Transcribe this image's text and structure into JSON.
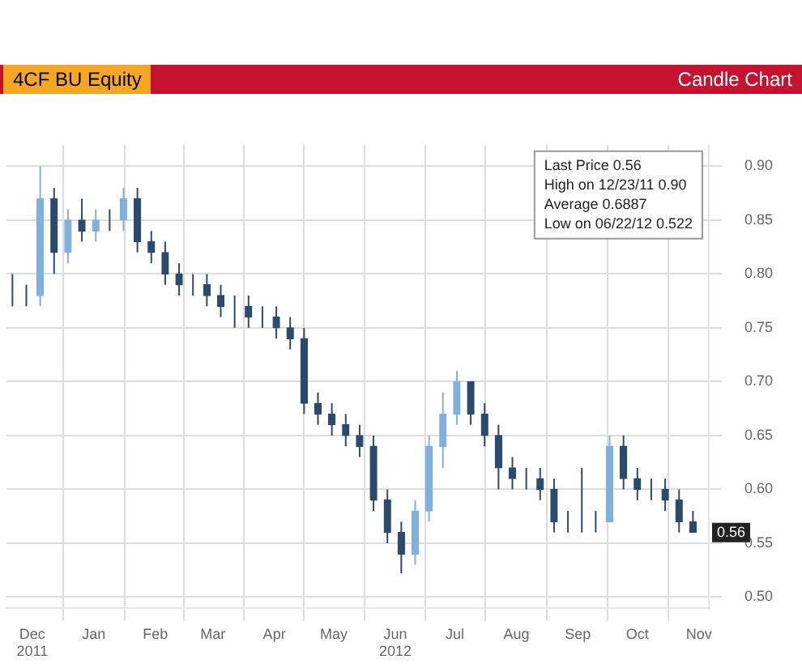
{
  "chart_data": {
    "type": "candlestick",
    "title": "Candle Chart",
    "subtitle": "4CF BU Equity",
    "x": [
      "2011-12-05",
      "2011-12-12",
      "2011-12-19",
      "2011-12-26",
      "2012-01-02",
      "2012-01-09",
      "2012-01-16",
      "2012-01-23",
      "2012-01-30",
      "2012-02-06",
      "2012-02-13",
      "2012-02-20",
      "2012-02-27",
      "2012-03-05",
      "2012-03-12",
      "2012-03-19",
      "2012-03-26",
      "2012-04-02",
      "2012-04-09",
      "2012-04-16",
      "2012-04-23",
      "2012-04-30",
      "2012-05-07",
      "2012-05-14",
      "2012-05-21",
      "2012-05-28",
      "2012-06-04",
      "2012-06-11",
      "2012-06-18",
      "2012-06-25",
      "2012-07-02",
      "2012-07-09",
      "2012-07-16",
      "2012-07-23",
      "2012-07-30",
      "2012-08-06",
      "2012-08-13",
      "2012-08-20",
      "2012-08-27",
      "2012-09-03",
      "2012-09-10",
      "2012-09-17",
      "2012-09-24",
      "2012-10-01",
      "2012-10-08",
      "2012-10-15",
      "2012-10-22",
      "2012-10-29",
      "2012-11-05",
      "2012-11-12"
    ],
    "ohlc": [
      [
        0.78,
        0.8,
        0.77,
        0.78
      ],
      [
        0.78,
        0.79,
        0.77,
        0.78
      ],
      [
        0.78,
        0.9,
        0.77,
        0.87
      ],
      [
        0.87,
        0.88,
        0.8,
        0.82
      ],
      [
        0.82,
        0.86,
        0.81,
        0.85
      ],
      [
        0.85,
        0.87,
        0.83,
        0.84
      ],
      [
        0.84,
        0.86,
        0.83,
        0.85
      ],
      [
        0.85,
        0.86,
        0.84,
        0.85
      ],
      [
        0.85,
        0.88,
        0.84,
        0.87
      ],
      [
        0.87,
        0.88,
        0.82,
        0.83
      ],
      [
        0.83,
        0.84,
        0.81,
        0.82
      ],
      [
        0.82,
        0.83,
        0.79,
        0.8
      ],
      [
        0.8,
        0.81,
        0.78,
        0.79
      ],
      [
        0.79,
        0.8,
        0.78,
        0.79
      ],
      [
        0.79,
        0.8,
        0.77,
        0.78
      ],
      [
        0.78,
        0.79,
        0.76,
        0.77
      ],
      [
        0.77,
        0.78,
        0.75,
        0.77
      ],
      [
        0.77,
        0.78,
        0.75,
        0.76
      ],
      [
        0.76,
        0.77,
        0.75,
        0.76
      ],
      [
        0.76,
        0.77,
        0.74,
        0.75
      ],
      [
        0.75,
        0.76,
        0.73,
        0.74
      ],
      [
        0.74,
        0.75,
        0.67,
        0.68
      ],
      [
        0.68,
        0.69,
        0.66,
        0.67
      ],
      [
        0.67,
        0.68,
        0.65,
        0.66
      ],
      [
        0.66,
        0.67,
        0.64,
        0.65
      ],
      [
        0.65,
        0.66,
        0.63,
        0.64
      ],
      [
        0.64,
        0.65,
        0.58,
        0.59
      ],
      [
        0.59,
        0.6,
        0.55,
        0.56
      ],
      [
        0.56,
        0.57,
        0.522,
        0.54
      ],
      [
        0.54,
        0.59,
        0.53,
        0.58
      ],
      [
        0.58,
        0.65,
        0.57,
        0.64
      ],
      [
        0.64,
        0.69,
        0.62,
        0.67
      ],
      [
        0.67,
        0.71,
        0.66,
        0.7
      ],
      [
        0.7,
        0.7,
        0.66,
        0.67
      ],
      [
        0.67,
        0.68,
        0.64,
        0.65
      ],
      [
        0.65,
        0.66,
        0.6,
        0.62
      ],
      [
        0.62,
        0.63,
        0.6,
        0.61
      ],
      [
        0.61,
        0.62,
        0.6,
        0.61
      ],
      [
        0.61,
        0.62,
        0.59,
        0.6
      ],
      [
        0.6,
        0.61,
        0.56,
        0.57
      ],
      [
        0.57,
        0.58,
        0.56,
        0.57
      ],
      [
        0.57,
        0.62,
        0.56,
        0.57
      ],
      [
        0.57,
        0.58,
        0.56,
        0.57
      ],
      [
        0.57,
        0.65,
        0.57,
        0.64
      ],
      [
        0.64,
        0.65,
        0.6,
        0.61
      ],
      [
        0.61,
        0.62,
        0.59,
        0.6
      ],
      [
        0.6,
        0.61,
        0.59,
        0.6
      ],
      [
        0.6,
        0.61,
        0.58,
        0.59
      ],
      [
        0.59,
        0.6,
        0.56,
        0.57
      ],
      [
        0.57,
        0.58,
        0.56,
        0.56
      ]
    ],
    "colors": [
      "#2a4a6e",
      "#2a4a6e",
      "#7fb0de",
      "#2a4a6e",
      "#7fb0de",
      "#2a4a6e",
      "#7fb0de",
      "#2a4a6e",
      "#7fb0de",
      "#2a4a6e",
      "#2a4a6e",
      "#2a4a6e",
      "#2a4a6e",
      "#2a4a6e",
      "#2a4a6e",
      "#2a4a6e",
      "#2a4a6e",
      "#2a4a6e",
      "#2a4a6e",
      "#2a4a6e",
      "#2a4a6e",
      "#2a4a6e",
      "#2a4a6e",
      "#2a4a6e",
      "#2a4a6e",
      "#2a4a6e",
      "#2a4a6e",
      "#2a4a6e",
      "#2a4a6e",
      "#7fb0de",
      "#7fb0de",
      "#7fb0de",
      "#7fb0de",
      "#2a4a6e",
      "#2a4a6e",
      "#2a4a6e",
      "#2a4a6e",
      "#2a4a6e",
      "#2a4a6e",
      "#2a4a6e",
      "#2a4a6e",
      "#2a4a6e",
      "#2a4a6e",
      "#7fb0de",
      "#2a4a6e",
      "#2a4a6e",
      "#2a4a6e",
      "#2a4a6e",
      "#2a4a6e",
      "#2a4a6e"
    ],
    "xlim": [
      "2011-12-02",
      "2012-11-20"
    ],
    "xticks": [
      {
        "value": "2011-12-15",
        "label": "Dec\n2011"
      },
      {
        "value": "2012-01-15",
        "label": "Jan"
      },
      {
        "value": "2012-02-15",
        "label": "Feb"
      },
      {
        "value": "2012-03-15",
        "label": "Mar"
      },
      {
        "value": "2012-04-15",
        "label": "Apr"
      },
      {
        "value": "2012-05-15",
        "label": "May"
      },
      {
        "value": "2012-06-15",
        "label": "Jun\n2012"
      },
      {
        "value": "2012-07-15",
        "label": "Jul"
      },
      {
        "value": "2012-08-15",
        "label": "Aug"
      },
      {
        "value": "2012-09-15",
        "label": "Sep"
      },
      {
        "value": "2012-10-15",
        "label": "Oct"
      },
      {
        "value": "2012-11-15",
        "label": "Nov"
      }
    ],
    "ylim": [
      0.49,
      0.92
    ],
    "yticks": [
      {
        "value": 0.5,
        "label": "0.50"
      },
      {
        "value": 0.55,
        "label": "0.55"
      },
      {
        "value": 0.6,
        "label": "0.60"
      },
      {
        "value": 0.65,
        "label": "0.65"
      },
      {
        "value": 0.7,
        "label": "0.70"
      },
      {
        "value": 0.75,
        "label": "0.75"
      },
      {
        "value": 0.8,
        "label": "0.80"
      },
      {
        "value": 0.85,
        "label": "0.85"
      },
      {
        "value": 0.9,
        "label": "0.90"
      }
    ],
    "grid": true,
    "annotations": [
      "Last Price 0.56",
      "High on 12/23/11 0.90",
      "Average 0.6887",
      "Low on 06/22/12 0.522",
      {
        "text": "0.56",
        "y": 0.56
      }
    ]
  }
}
